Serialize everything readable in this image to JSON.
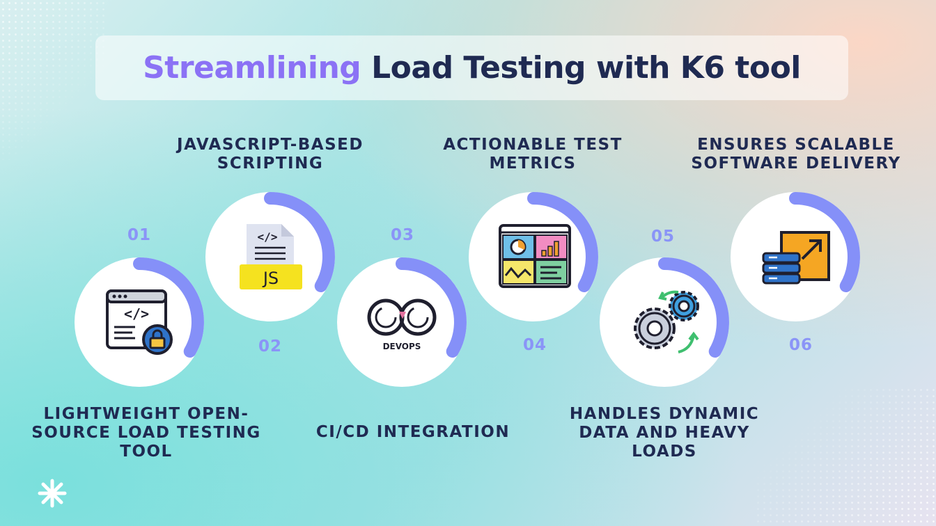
{
  "title": {
    "accent": "Streamlining",
    "rest": "Load Testing with K6 tool"
  },
  "colors": {
    "ring_arc": "#8590f8",
    "ring_base": "#ffffff",
    "title_accent": "#8b72f5",
    "text": "#1f2a52",
    "number": "#8a94f7"
  },
  "steps": [
    {
      "number": "01",
      "label": "LIGHTWEIGHT OPEN-SOURCE LOAD TESTING TOOL",
      "icon": "code-window-lock-icon"
    },
    {
      "number": "02",
      "label": "JAVASCRIPT-BASED SCRIPTING",
      "icon": "js-file-icon"
    },
    {
      "number": "03",
      "label": "CI/CD INTEGRATION",
      "icon": "devops-infinity-icon",
      "icon_text": "DEVOPS"
    },
    {
      "number": "04",
      "label": "ACTIONABLE TEST METRICS",
      "icon": "dashboard-metrics-icon"
    },
    {
      "number": "05",
      "label": "HANDLES DYNAMIC DATA AND HEAVY LOADS",
      "icon": "gears-icon"
    },
    {
      "number": "06",
      "label": "ENSURES SCALABLE SOFTWARE DELIVERY",
      "icon": "server-scale-icon"
    }
  ],
  "js_badge": "JS",
  "brand_icon": "asterisk-logo-icon"
}
